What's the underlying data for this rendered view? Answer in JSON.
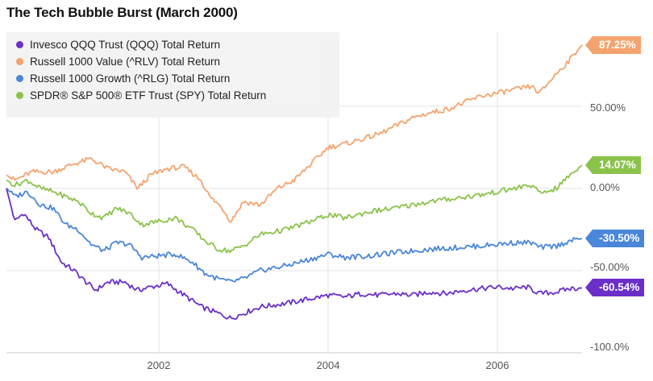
{
  "chart_data": {
    "type": "line",
    "title": "The Tech Bubble Burst (March 2000)",
    "xlabel": "",
    "ylabel": "",
    "x_ticks": [
      "2002",
      "2004",
      "2006"
    ],
    "x_range": [
      2000.2,
      2007.0
    ],
    "y_ticks": [
      "50.00%",
      "0.00%",
      "-50.00%",
      "-100.0%"
    ],
    "y_tick_values": [
      50,
      0,
      -50,
      -100
    ],
    "ylim": [
      -100,
      95
    ],
    "grid": true,
    "legend_position": "top-left",
    "series": [
      {
        "name": "Invesco QQQ Trust (QQQ) Total Return",
        "color": "#6a2fc9",
        "end_label": "-60.54%",
        "x": [
          2000.2,
          2000.3,
          2000.4,
          2000.55,
          2000.7,
          2000.85,
          2001.0,
          2001.1,
          2001.25,
          2001.4,
          2001.6,
          2001.75,
          2001.9,
          2002.1,
          2002.3,
          2002.5,
          2002.6,
          2002.75,
          2002.85,
          2003.0,
          2003.2,
          2003.5,
          2003.8,
          2004.0,
          2004.2,
          2004.4,
          2004.6,
          2004.8,
          2005.0,
          2005.2,
          2005.4,
          2005.6,
          2005.8,
          2006.0,
          2006.2,
          2006.35,
          2006.5,
          2006.7,
          2006.85,
          2007.0
        ],
        "y": [
          0,
          -20,
          -15,
          -25,
          -30,
          -45,
          -50,
          -55,
          -62,
          -57,
          -57,
          -62,
          -60,
          -58,
          -65,
          -72,
          -74,
          -77,
          -79,
          -76,
          -72,
          -70,
          -67,
          -65,
          -66,
          -64,
          -65,
          -64,
          -65,
          -63,
          -64,
          -62,
          -61,
          -60,
          -61,
          -60,
          -64,
          -63,
          -61,
          -60.54
        ]
      },
      {
        "name": "Russell 1000 Value (^RLV) Total Return",
        "color": "#f5a36e",
        "end_label": "87.25%",
        "x": [
          2000.2,
          2000.3,
          2000.5,
          2000.75,
          2001.0,
          2001.2,
          2001.4,
          2001.6,
          2001.75,
          2001.9,
          2002.1,
          2002.3,
          2002.5,
          2002.6,
          2002.75,
          2002.85,
          2003.0,
          2003.2,
          2003.4,
          2003.6,
          2003.8,
          2004.0,
          2004.2,
          2004.4,
          2004.6,
          2004.8,
          2005.0,
          2005.2,
          2005.4,
          2005.6,
          2005.8,
          2006.0,
          2006.2,
          2006.4,
          2006.5,
          2006.7,
          2006.85,
          2007.0
        ],
        "y": [
          8,
          5,
          10,
          10,
          15,
          18,
          12,
          10,
          0,
          8,
          12,
          13,
          5,
          -5,
          -12,
          -20,
          -8,
          -10,
          0,
          5,
          15,
          25,
          27,
          30,
          33,
          38,
          43,
          46,
          48,
          52,
          56,
          58,
          60,
          62,
          58,
          70,
          78,
          87.25
        ]
      },
      {
        "name": "Russell 1000 Growth (^RLG) Total Return",
        "color": "#4a86d9",
        "end_label": "-30.50%",
        "x": [
          2000.2,
          2000.3,
          2000.45,
          2000.6,
          2000.75,
          2000.9,
          2001.05,
          2001.2,
          2001.35,
          2001.5,
          2001.65,
          2001.8,
          2002.0,
          2002.2,
          2002.4,
          2002.55,
          2002.7,
          2002.85,
          2003.0,
          2003.2,
          2003.5,
          2003.8,
          2004.0,
          2004.2,
          2004.5,
          2004.8,
          2005.0,
          2005.2,
          2005.5,
          2005.8,
          2006.0,
          2006.2,
          2006.4,
          2006.5,
          2006.7,
          2006.85,
          2007.0
        ],
        "y": [
          0,
          -5,
          -2,
          -10,
          -12,
          -22,
          -25,
          -34,
          -38,
          -33,
          -34,
          -42,
          -41,
          -40,
          -45,
          -52,
          -55,
          -57,
          -55,
          -50,
          -47,
          -43,
          -40,
          -42,
          -41,
          -39,
          -38,
          -37,
          -36,
          -35,
          -34,
          -33,
          -33,
          -36,
          -35,
          -32,
          -30.5
        ]
      },
      {
        "name": "SPDR® S&P 500® ETF Trust (SPY) Total Return",
        "color": "#8bc34a",
        "end_label": "14.07%",
        "x": [
          2000.2,
          2000.3,
          2000.45,
          2000.6,
          2000.75,
          2000.9,
          2001.05,
          2001.2,
          2001.35,
          2001.5,
          2001.65,
          2001.8,
          2002.0,
          2002.2,
          2002.4,
          2002.55,
          2002.7,
          2002.85,
          2003.0,
          2003.2,
          2003.5,
          2003.8,
          2004.0,
          2004.2,
          2004.5,
          2004.8,
          2005.0,
          2005.2,
          2005.5,
          2005.8,
          2006.0,
          2006.2,
          2006.4,
          2006.5,
          2006.7,
          2006.85,
          2007.0
        ],
        "y": [
          5,
          2,
          5,
          0,
          -2,
          -5,
          -8,
          -15,
          -18,
          -12,
          -15,
          -22,
          -20,
          -18,
          -25,
          -32,
          -37,
          -38,
          -35,
          -28,
          -25,
          -20,
          -16,
          -18,
          -14,
          -12,
          -10,
          -8,
          -6,
          -4,
          -2,
          0,
          2,
          -3,
          0,
          8,
          14.07
        ]
      }
    ]
  }
}
